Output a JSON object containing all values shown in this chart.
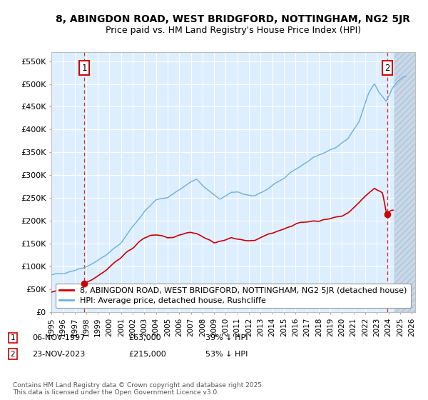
{
  "title_line1": "8, ABINGDON ROAD, WEST BRIDGFORD, NOTTINGHAM, NG2 5JR",
  "title_line2": "Price paid vs. HM Land Registry's House Price Index (HPI)",
  "ylim": [
    0,
    570000
  ],
  "yticks": [
    0,
    50000,
    100000,
    150000,
    200000,
    250000,
    300000,
    350000,
    400000,
    450000,
    500000,
    550000
  ],
  "ytick_labels": [
    "£0",
    "£50K",
    "£100K",
    "£150K",
    "£200K",
    "£250K",
    "£300K",
    "£350K",
    "£400K",
    "£450K",
    "£500K",
    "£550K"
  ],
  "xlim_start": 1995.0,
  "xlim_end": 2026.3,
  "hpi_color": "#6ab0de",
  "price_color": "#cc0000",
  "marker_color": "#cc0000",
  "annotation_box_color": "#cc0000",
  "dashed_line_color": "#cc0000",
  "background_color": "#ffffff",
  "plot_bg_color": "#ddeeff",
  "grid_color": "#ffffff",
  "legend_label_red": "8, ABINGDON ROAD, WEST BRIDGFORD, NOTTINGHAM, NG2 5JR (detached house)",
  "legend_label_blue": "HPI: Average price, detached house, Rushcliffe",
  "transaction1_date": "06-NOV-1997",
  "transaction1_price": "£63,000",
  "transaction1_hpi": "39% ↓ HPI",
  "transaction1_year": 1997.85,
  "transaction1_price_val": 63000,
  "transaction2_date": "23-NOV-2023",
  "transaction2_price": "£215,000",
  "transaction2_hpi": "53% ↓ HPI",
  "transaction2_year": 2023.9,
  "transaction2_price_val": 215000,
  "footer_text": "Contains HM Land Registry data © Crown copyright and database right 2025.\nThis data is licensed under the Open Government Licence v3.0.",
  "title_fontsize": 10,
  "subtitle_fontsize": 9,
  "tick_fontsize": 8,
  "legend_fontsize": 8,
  "footer_fontsize": 6.5,
  "annot_fontsize": 8
}
